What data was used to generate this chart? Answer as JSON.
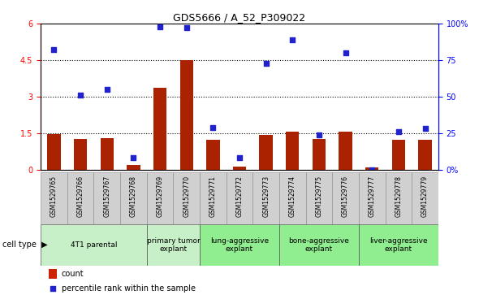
{
  "title": "GDS5666 / A_52_P309022",
  "samples": [
    "GSM1529765",
    "GSM1529766",
    "GSM1529767",
    "GSM1529768",
    "GSM1529769",
    "GSM1529770",
    "GSM1529771",
    "GSM1529772",
    "GSM1529773",
    "GSM1529774",
    "GSM1529775",
    "GSM1529776",
    "GSM1529777",
    "GSM1529778",
    "GSM1529779"
  ],
  "count_values": [
    1.45,
    1.25,
    1.3,
    0.18,
    3.35,
    4.5,
    1.22,
    0.13,
    1.42,
    1.55,
    1.25,
    1.55,
    0.1,
    1.22,
    1.22
  ],
  "percentile_values": [
    82,
    51,
    55,
    8,
    98,
    97,
    29,
    8,
    73,
    89,
    24,
    80,
    0,
    26,
    28
  ],
  "left_ylim": [
    0,
    6
  ],
  "right_ylim": [
    0,
    100
  ],
  "left_yticks": [
    0,
    1.5,
    3.0,
    4.5,
    6
  ],
  "right_yticks": [
    0,
    25,
    50,
    75,
    100
  ],
  "left_ytick_labels": [
    "0",
    "1.5",
    "3",
    "4.5",
    "6"
  ],
  "right_ytick_labels": [
    "0%",
    "25",
    "50",
    "75",
    "100%"
  ],
  "cell_type_groups": [
    {
      "label": "4T1 parental",
      "indices": [
        0,
        1,
        2,
        3
      ],
      "color": "#c8f0c8"
    },
    {
      "label": "primary tumor\nexplant",
      "indices": [
        4,
        5
      ],
      "color": "#c8f0c8"
    },
    {
      "label": "lung-aggressive\nexplant",
      "indices": [
        6,
        7,
        8
      ],
      "color": "#90ee90"
    },
    {
      "label": "bone-aggressive\nexplant",
      "indices": [
        9,
        10,
        11
      ],
      "color": "#90ee90"
    },
    {
      "label": "liver-aggressive\nexplant",
      "indices": [
        12,
        13,
        14
      ],
      "color": "#90ee90"
    }
  ],
  "bar_color": "#aa2200",
  "dot_color": "#2222cc",
  "bar_width": 0.5,
  "dotted_line_color": "black",
  "legend_count_color": "#cc2200",
  "legend_dot_color": "#2222cc"
}
